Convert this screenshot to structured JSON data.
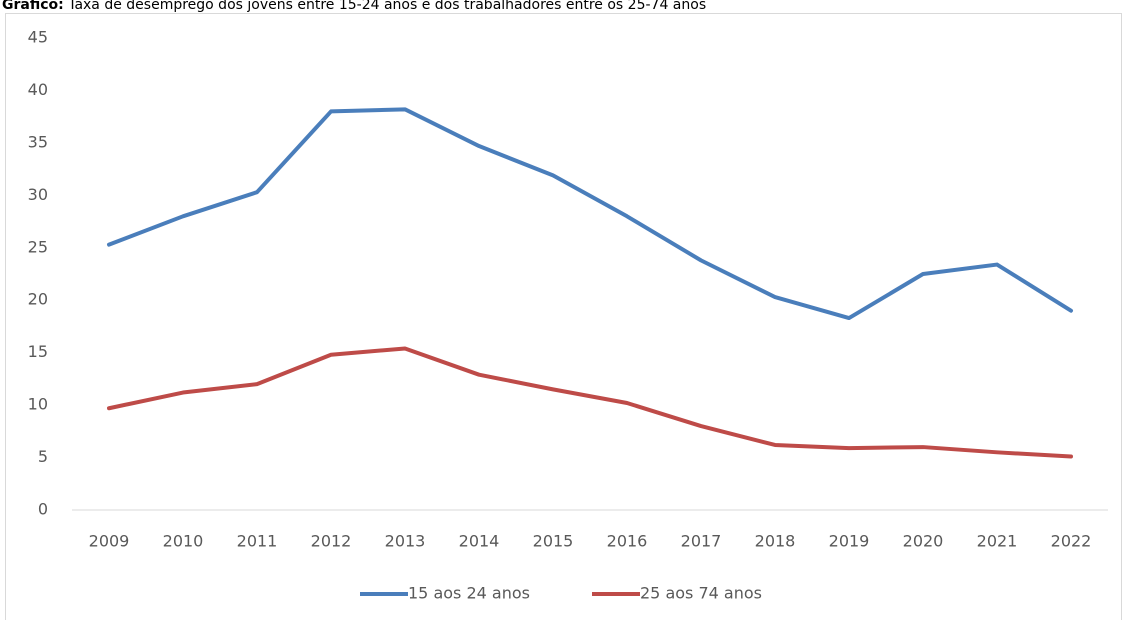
{
  "chart_data": {
    "type": "line",
    "title_label": "Gráfico:",
    "title": "Taxa de desemprego dos jovens entre 15-24 anos e dos trabalhadores entre os 25-74 anos",
    "categories": [
      "2009",
      "2010",
      "2011",
      "2012",
      "2013",
      "2014",
      "2015",
      "2016",
      "2017",
      "2018",
      "2019",
      "2020",
      "2021",
      "2022"
    ],
    "series": [
      {
        "name": "15 aos 24 anos",
        "color": "#4a7ebb",
        "values": [
          25.3,
          28.0,
          30.3,
          38.0,
          38.2,
          34.7,
          31.9,
          28.0,
          23.8,
          20.3,
          18.3,
          22.5,
          23.4,
          19.0
        ]
      },
      {
        "name": "25 aos 74 anos",
        "color": "#be4b48",
        "values": [
          9.7,
          11.2,
          12.0,
          14.8,
          15.4,
          12.9,
          11.5,
          10.2,
          8.0,
          6.2,
          5.9,
          6.0,
          5.5,
          5.1
        ]
      }
    ],
    "ylim": [
      0,
      45
    ],
    "yticks": [
      0,
      5,
      10,
      15,
      20,
      25,
      30,
      35,
      40,
      45
    ],
    "grid": false,
    "legend": "bottom"
  }
}
